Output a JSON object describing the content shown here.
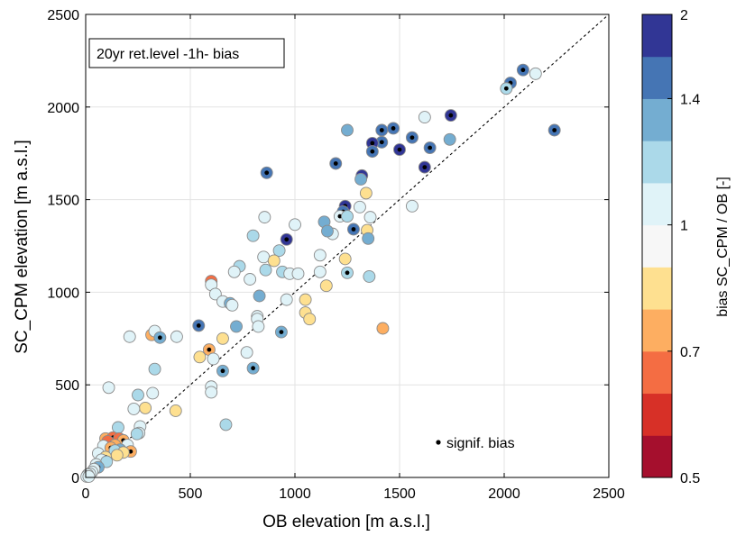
{
  "chart_data": {
    "type": "scatter",
    "annotation": "20yr ret.level -1h- bias",
    "xlabel": "OB elevation [m a.s.l.]",
    "ylabel": "SC_CPM elevation [m a.s.l.]",
    "xlim": [
      0,
      2500
    ],
    "ylim": [
      0,
      2500
    ],
    "xticks": [
      "0",
      "500",
      "1000",
      "1500",
      "2000",
      "2500"
    ],
    "yticks": [
      "0",
      "500",
      "1000",
      "1500",
      "2000",
      "2500"
    ],
    "grid": true,
    "reference_line": "y = x (dashed)",
    "legend": {
      "label": "signif. bias",
      "placement": "bottom-right"
    },
    "colorbar": {
      "label": "bias SC_CPM / OB [-]",
      "range": [
        0.5,
        2
      ],
      "tick_labels": [
        "0.5",
        "0.7",
        "1",
        "1.4",
        "2"
      ],
      "tick_values": [
        0.5,
        0.7,
        1.0,
        1.4,
        2.0
      ],
      "bins": [
        {
          "upper": 0.55,
          "color": "#a50f2d"
        },
        {
          "upper": 0.62,
          "color": "#d73027"
        },
        {
          "upper": 0.7,
          "color": "#f46d43"
        },
        {
          "upper": 0.8,
          "color": "#fdae61"
        },
        {
          "upper": 0.9,
          "color": "#fee090"
        },
        {
          "upper": 1.0,
          "color": "#f7f7f7"
        },
        {
          "upper": 1.12,
          "color": "#e0f3f8"
        },
        {
          "upper": 1.25,
          "color": "#abd9e9"
        },
        {
          "upper": 1.4,
          "color": "#74add1"
        },
        {
          "upper": 1.6,
          "color": "#4575b4"
        },
        {
          "upper": 2.0,
          "color": "#313695"
        }
      ]
    },
    "points": [
      {
        "x": 2090,
        "y": 2200,
        "bias": 1.5,
        "sig": true
      },
      {
        "x": 2150,
        "y": 2180,
        "bias": 1.08,
        "sig": false
      },
      {
        "x": 2030,
        "y": 2130,
        "bias": 1.5,
        "sig": true
      },
      {
        "x": 2010,
        "y": 2100,
        "bias": 1.2,
        "sig": true
      },
      {
        "x": 2240,
        "y": 1875,
        "bias": 1.5,
        "sig": true
      },
      {
        "x": 1745,
        "y": 1955,
        "bias": 1.8,
        "sig": true
      },
      {
        "x": 1620,
        "y": 1945,
        "bias": 1.1,
        "sig": false
      },
      {
        "x": 1740,
        "y": 1825,
        "bias": 1.3,
        "sig": false
      },
      {
        "x": 1645,
        "y": 1780,
        "bias": 1.5,
        "sig": true
      },
      {
        "x": 1560,
        "y": 1835,
        "bias": 1.5,
        "sig": true
      },
      {
        "x": 1500,
        "y": 1770,
        "bias": 1.8,
        "sig": true
      },
      {
        "x": 1470,
        "y": 1885,
        "bias": 1.5,
        "sig": true
      },
      {
        "x": 1415,
        "y": 1875,
        "bias": 1.5,
        "sig": true
      },
      {
        "x": 1415,
        "y": 1810,
        "bias": 1.5,
        "sig": true
      },
      {
        "x": 1370,
        "y": 1805,
        "bias": 1.8,
        "sig": true
      },
      {
        "x": 1370,
        "y": 1760,
        "bias": 1.5,
        "sig": true
      },
      {
        "x": 1250,
        "y": 1875,
        "bias": 1.3,
        "sig": false
      },
      {
        "x": 1620,
        "y": 1675,
        "bias": 1.8,
        "sig": true
      },
      {
        "x": 1195,
        "y": 1695,
        "bias": 1.5,
        "sig": true
      },
      {
        "x": 1320,
        "y": 1630,
        "bias": 1.8,
        "sig": true
      },
      {
        "x": 1315,
        "y": 1610,
        "bias": 1.3,
        "sig": false
      },
      {
        "x": 865,
        "y": 1645,
        "bias": 1.5,
        "sig": true
      },
      {
        "x": 1340,
        "y": 1535,
        "bias": 0.85,
        "sig": false
      },
      {
        "x": 1560,
        "y": 1465,
        "bias": 1.08,
        "sig": false
      },
      {
        "x": 1310,
        "y": 1460,
        "bias": 1.05,
        "sig": false
      },
      {
        "x": 1240,
        "y": 1465,
        "bias": 1.8,
        "sig": true
      },
      {
        "x": 1230,
        "y": 1435,
        "bias": 1.5,
        "sig": true
      },
      {
        "x": 1215,
        "y": 1410,
        "bias": 1.05,
        "sig": true
      },
      {
        "x": 1250,
        "y": 1410,
        "bias": 1.2,
        "sig": false
      },
      {
        "x": 1360,
        "y": 1405,
        "bias": 1.05,
        "sig": false
      },
      {
        "x": 1140,
        "y": 1380,
        "bias": 1.3,
        "sig": false
      },
      {
        "x": 1000,
        "y": 1365,
        "bias": 1.05,
        "sig": false
      },
      {
        "x": 855,
        "y": 1405,
        "bias": 1.08,
        "sig": false
      },
      {
        "x": 1280,
        "y": 1340,
        "bias": 1.5,
        "sig": true
      },
      {
        "x": 1345,
        "y": 1335,
        "bias": 0.85,
        "sig": false
      },
      {
        "x": 1180,
        "y": 1315,
        "bias": 1.05,
        "sig": false
      },
      {
        "x": 1155,
        "y": 1330,
        "bias": 1.3,
        "sig": false
      },
      {
        "x": 1350,
        "y": 1290,
        "bias": 1.3,
        "sig": false
      },
      {
        "x": 960,
        "y": 1285,
        "bias": 1.8,
        "sig": true
      },
      {
        "x": 800,
        "y": 1305,
        "bias": 1.2,
        "sig": false
      },
      {
        "x": 925,
        "y": 1225,
        "bias": 1.2,
        "sig": false
      },
      {
        "x": 850,
        "y": 1190,
        "bias": 1.05,
        "sig": false
      },
      {
        "x": 900,
        "y": 1170,
        "bias": 0.85,
        "sig": false
      },
      {
        "x": 1120,
        "y": 1200,
        "bias": 1.08,
        "sig": false
      },
      {
        "x": 1240,
        "y": 1180,
        "bias": 0.85,
        "sig": false
      },
      {
        "x": 735,
        "y": 1140,
        "bias": 1.2,
        "sig": false
      },
      {
        "x": 860,
        "y": 1120,
        "bias": 1.2,
        "sig": false
      },
      {
        "x": 940,
        "y": 1110,
        "bias": 1.2,
        "sig": false
      },
      {
        "x": 710,
        "y": 1110,
        "bias": 1.05,
        "sig": false
      },
      {
        "x": 975,
        "y": 1100,
        "bias": 1.05,
        "sig": false
      },
      {
        "x": 1015,
        "y": 1100,
        "bias": 1.05,
        "sig": false
      },
      {
        "x": 1120,
        "y": 1110,
        "bias": 1.05,
        "sig": false
      },
      {
        "x": 1250,
        "y": 1105,
        "bias": 1.2,
        "sig": true
      },
      {
        "x": 1355,
        "y": 1085,
        "bias": 1.2,
        "sig": false
      },
      {
        "x": 785,
        "y": 1070,
        "bias": 1.05,
        "sig": false
      },
      {
        "x": 600,
        "y": 1060,
        "bias": 0.68,
        "sig": false
      },
      {
        "x": 600,
        "y": 1040,
        "bias": 1.05,
        "sig": false
      },
      {
        "x": 1150,
        "y": 1035,
        "bias": 0.85,
        "sig": false
      },
      {
        "x": 620,
        "y": 990,
        "bias": 1.05,
        "sig": false
      },
      {
        "x": 830,
        "y": 980,
        "bias": 1.3,
        "sig": false
      },
      {
        "x": 655,
        "y": 950,
        "bias": 1.08,
        "sig": false
      },
      {
        "x": 690,
        "y": 940,
        "bias": 1.3,
        "sig": true
      },
      {
        "x": 700,
        "y": 930,
        "bias": 1.05,
        "sig": false
      },
      {
        "x": 960,
        "y": 960,
        "bias": 1.05,
        "sig": false
      },
      {
        "x": 1050,
        "y": 960,
        "bias": 0.85,
        "sig": false
      },
      {
        "x": 1050,
        "y": 890,
        "bias": 0.85,
        "sig": false
      },
      {
        "x": 1070,
        "y": 855,
        "bias": 0.85,
        "sig": false
      },
      {
        "x": 820,
        "y": 870,
        "bias": 1.05,
        "sig": false
      },
      {
        "x": 820,
        "y": 855,
        "bias": 1.05,
        "sig": false
      },
      {
        "x": 540,
        "y": 820,
        "bias": 1.5,
        "sig": true
      },
      {
        "x": 720,
        "y": 815,
        "bias": 1.3,
        "sig": false
      },
      {
        "x": 825,
        "y": 815,
        "bias": 1.05,
        "sig": false
      },
      {
        "x": 935,
        "y": 785,
        "bias": 1.3,
        "sig": true
      },
      {
        "x": 1420,
        "y": 805,
        "bias": 0.75,
        "sig": false
      },
      {
        "x": 210,
        "y": 760,
        "bias": 1.05,
        "sig": false
      },
      {
        "x": 315,
        "y": 770,
        "bias": 0.8,
        "sig": false
      },
      {
        "x": 330,
        "y": 790,
        "bias": 1.05,
        "sig": false
      },
      {
        "x": 355,
        "y": 755,
        "bias": 1.3,
        "sig": true
      },
      {
        "x": 435,
        "y": 760,
        "bias": 1.05,
        "sig": false
      },
      {
        "x": 655,
        "y": 750,
        "bias": 0.85,
        "sig": false
      },
      {
        "x": 590,
        "y": 690,
        "bias": 0.75,
        "sig": true
      },
      {
        "x": 770,
        "y": 675,
        "bias": 1.05,
        "sig": false
      },
      {
        "x": 545,
        "y": 650,
        "bias": 0.85,
        "sig": false
      },
      {
        "x": 610,
        "y": 640,
        "bias": 1.05,
        "sig": false
      },
      {
        "x": 800,
        "y": 590,
        "bias": 1.3,
        "sig": true
      },
      {
        "x": 655,
        "y": 575,
        "bias": 1.3,
        "sig": true
      },
      {
        "x": 330,
        "y": 585,
        "bias": 1.2,
        "sig": false
      },
      {
        "x": 110,
        "y": 485,
        "bias": 1.05,
        "sig": false
      },
      {
        "x": 600,
        "y": 490,
        "bias": 1.05,
        "sig": false
      },
      {
        "x": 600,
        "y": 460,
        "bias": 1.05,
        "sig": false
      },
      {
        "x": 320,
        "y": 455,
        "bias": 1.08,
        "sig": false
      },
      {
        "x": 250,
        "y": 445,
        "bias": 1.2,
        "sig": false
      },
      {
        "x": 285,
        "y": 375,
        "bias": 0.85,
        "sig": false
      },
      {
        "x": 230,
        "y": 370,
        "bias": 1.05,
        "sig": false
      },
      {
        "x": 430,
        "y": 360,
        "bias": 0.85,
        "sig": false
      },
      {
        "x": 670,
        "y": 285,
        "bias": 1.2,
        "sig": false
      },
      {
        "x": 155,
        "y": 270,
        "bias": 1.2,
        "sig": false
      },
      {
        "x": 260,
        "y": 275,
        "bias": 1.05,
        "sig": false
      },
      {
        "x": 255,
        "y": 240,
        "bias": 1.05,
        "sig": false
      },
      {
        "x": 245,
        "y": 235,
        "bias": 1.2,
        "sig": false
      },
      {
        "x": 95,
        "y": 210,
        "bias": 0.75,
        "sig": false
      },
      {
        "x": 130,
        "y": 215,
        "bias": 0.68,
        "sig": true
      },
      {
        "x": 160,
        "y": 210,
        "bias": 0.68,
        "sig": false
      },
      {
        "x": 180,
        "y": 200,
        "bias": 0.75,
        "sig": true
      },
      {
        "x": 105,
        "y": 195,
        "bias": 0.68,
        "sig": false
      },
      {
        "x": 140,
        "y": 175,
        "bias": 0.8,
        "sig": false
      },
      {
        "x": 200,
        "y": 175,
        "bias": 1.08,
        "sig": false
      },
      {
        "x": 85,
        "y": 170,
        "bias": 1.05,
        "sig": false
      },
      {
        "x": 120,
        "y": 160,
        "bias": 0.8,
        "sig": true
      },
      {
        "x": 165,
        "y": 150,
        "bias": 1.3,
        "sig": false
      },
      {
        "x": 140,
        "y": 145,
        "bias": 1.2,
        "sig": false
      },
      {
        "x": 215,
        "y": 140,
        "bias": 0.8,
        "sig": true
      },
      {
        "x": 180,
        "y": 135,
        "bias": 0.85,
        "sig": false
      },
      {
        "x": 60,
        "y": 130,
        "bias": 1.05,
        "sig": false
      },
      {
        "x": 95,
        "y": 110,
        "bias": 0.85,
        "sig": true
      },
      {
        "x": 150,
        "y": 120,
        "bias": 0.9,
        "sig": false
      },
      {
        "x": 75,
        "y": 95,
        "bias": 1.05,
        "sig": false
      },
      {
        "x": 100,
        "y": 85,
        "bias": 1.2,
        "sig": false
      },
      {
        "x": 50,
        "y": 70,
        "bias": 1.05,
        "sig": false
      },
      {
        "x": 60,
        "y": 55,
        "bias": 1.3,
        "sig": true
      },
      {
        "x": 40,
        "y": 45,
        "bias": 1.05,
        "sig": true
      },
      {
        "x": 30,
        "y": 30,
        "bias": 1.05,
        "sig": true
      },
      {
        "x": 20,
        "y": 20,
        "bias": 1.05,
        "sig": true
      },
      {
        "x": 10,
        "y": 15,
        "bias": 1.05,
        "sig": false
      },
      {
        "x": 5,
        "y": 5,
        "bias": 1.05,
        "sig": true
      },
      {
        "x": 15,
        "y": 5,
        "bias": 1.05,
        "sig": false
      }
    ]
  }
}
